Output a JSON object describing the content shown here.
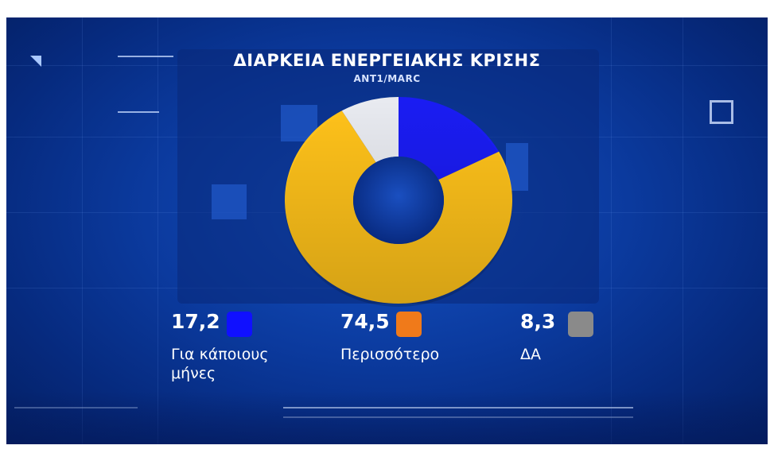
{
  "chart_data": {
    "type": "pie",
    "title": "ΔΙΑΡΚΕΙΑ ΕΝΕΡΓΕΙΑΚΗΣ ΚΡΙΣΗΣ",
    "subtitle": "ANT1/MARC",
    "donut": true,
    "slices": [
      {
        "label": "Για κάποιους μήνες",
        "value": 17.2,
        "value_text": "17,2",
        "color": "#1a1cf2"
      },
      {
        "label": "Περισσότερο",
        "value": 74.5,
        "value_text": "74,5",
        "color": "#ffc21a"
      },
      {
        "label": "ΔΑ",
        "value": 8.3,
        "value_text": "8,3",
        "color": "#e8eaf0"
      }
    ],
    "legend": [
      {
        "value_text": "17,2",
        "label_lines": [
          "Για κάποιους",
          "μήνες"
        ],
        "color": "#1010ff"
      },
      {
        "value_text": "74,5",
        "label_lines": [
          "Περισσότερο"
        ],
        "color": "#f07a1a"
      },
      {
        "value_text": "8,3",
        "label_lines": [
          "ΔΑ"
        ],
        "color": "#8a8a8a"
      }
    ]
  }
}
